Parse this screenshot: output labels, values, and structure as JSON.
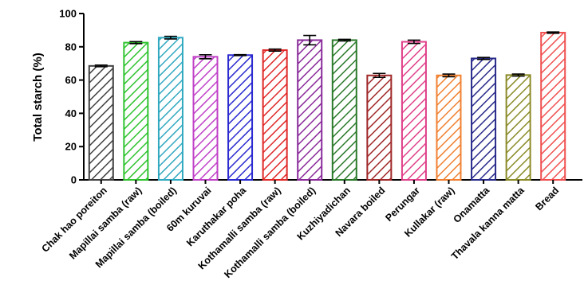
{
  "chart_data": {
    "type": "bar",
    "title": "",
    "xlabel": "",
    "ylabel": "Total starch (%)",
    "ylim": [
      0,
      100
    ],
    "yticks": [
      0,
      20,
      40,
      60,
      80,
      100
    ],
    "grid": false,
    "legend": "none",
    "bar_fill": "diagonal-hatch",
    "categories": [
      "Chak hao poreiton",
      "Mapillai samba (raw)",
      "Mapillai samba (boiled)",
      "60m kuruvai",
      "Karuthakar poha",
      "Kothamalli samba (raw)",
      "Kothamalli samba (boiled)",
      "Kuzhiyadichan",
      "Navara boiled",
      "Perungar",
      "Kullakar (raw)",
      "Onamatta",
      "Thavala kanna matta",
      "Bread"
    ],
    "values": [
      68.5,
      82.5,
      85.5,
      74,
      75,
      78,
      84,
      84,
      62.8,
      83,
      62.8,
      73,
      63,
      88.5
    ],
    "errors": [
      0.5,
      0.6,
      0.8,
      1.2,
      0.3,
      0.6,
      2.8,
      0.5,
      1.2,
      1.0,
      0.8,
      0.6,
      0.6,
      0.4
    ],
    "colors": [
      "#404040",
      "#2ec32e",
      "#30a8c0",
      "#c040c8",
      "#2a2ad0",
      "#e02828",
      "#8a2a9a",
      "#2a7a2a",
      "#a02828",
      "#e0408a",
      "#f08030",
      "#282a8a",
      "#8a8a28",
      "#f05050"
    ]
  }
}
